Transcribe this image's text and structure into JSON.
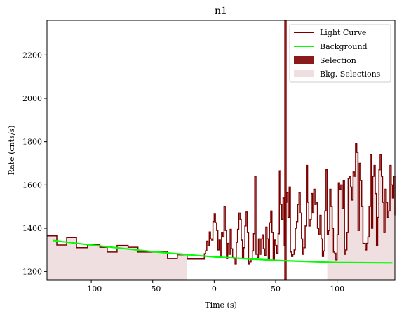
{
  "chart_data": {
    "type": "line",
    "title": "n1",
    "xlabel": "Time (s)",
    "ylabel": "Rate (cnts/s)",
    "xlim": [
      -136,
      147
    ],
    "ylim": [
      1160,
      2360
    ],
    "xticks": [
      -100,
      -50,
      0,
      50,
      100
    ],
    "xtick_labels": [
      "−100",
      "−50",
      "0",
      "50",
      "100"
    ],
    "yticks": [
      1200,
      1400,
      1600,
      1800,
      2000,
      2200
    ],
    "ytick_labels": [
      "1200",
      "1400",
      "1600",
      "1800",
      "2000",
      "2200"
    ],
    "grid": false,
    "legend_position": "top-right",
    "colors": {
      "light_curve": "#7a0000",
      "background": "#00ff00",
      "selection": "#8b1a1a",
      "bkg_selection": "#efdfe0"
    },
    "series": [
      {
        "name": "Light Curve",
        "style": "step",
        "points": [
          [
            -136,
            1365
          ],
          [
            -128,
            1322
          ],
          [
            -120,
            1357
          ],
          [
            -112,
            1310
          ],
          [
            -103,
            1325
          ],
          [
            -93,
            1312
          ],
          [
            -87,
            1290
          ],
          [
            -79,
            1320
          ],
          [
            -70,
            1312
          ],
          [
            -62,
            1290
          ],
          [
            -46,
            1293
          ],
          [
            -38,
            1260
          ],
          [
            -30,
            1278
          ],
          [
            -22,
            1258
          ],
          [
            -8,
            1283
          ],
          [
            -7,
            1296
          ],
          [
            -6,
            1340
          ],
          [
            -5,
            1318
          ],
          [
            -4,
            1383
          ],
          [
            -3,
            1350
          ],
          [
            -2,
            1345
          ],
          [
            -1,
            1430
          ],
          [
            0,
            1465
          ],
          [
            1,
            1425
          ],
          [
            2,
            1390
          ],
          [
            3,
            1300
          ],
          [
            4,
            1345
          ],
          [
            5,
            1270
          ],
          [
            6,
            1380
          ],
          [
            7,
            1360
          ],
          [
            8,
            1500
          ],
          [
            9,
            1390
          ],
          [
            10,
            1260
          ],
          [
            11,
            1330
          ],
          [
            12,
            1280
          ],
          [
            13,
            1395
          ],
          [
            14,
            1305
          ],
          [
            15,
            1265
          ],
          [
            16,
            1260
          ],
          [
            17,
            1235
          ],
          [
            18,
            1335
          ],
          [
            19,
            1395
          ],
          [
            20,
            1470
          ],
          [
            21,
            1440
          ],
          [
            22,
            1345
          ],
          [
            23,
            1260
          ],
          [
            24,
            1310
          ],
          [
            25,
            1410
          ],
          [
            26,
            1475
          ],
          [
            27,
            1380
          ],
          [
            28,
            1235
          ],
          [
            29,
            1245
          ],
          [
            30,
            1260
          ],
          [
            31,
            1295
          ],
          [
            32,
            1375
          ],
          [
            33,
            1640
          ],
          [
            34,
            1280
          ],
          [
            35,
            1265
          ],
          [
            36,
            1350
          ],
          [
            37,
            1280
          ],
          [
            38,
            1350
          ],
          [
            39,
            1370
          ],
          [
            40,
            1305
          ],
          [
            41,
            1275
          ],
          [
            42,
            1405
          ],
          [
            43,
            1350
          ],
          [
            44,
            1250
          ],
          [
            45,
            1425
          ],
          [
            46,
            1480
          ],
          [
            47,
            1380
          ],
          [
            48,
            1255
          ],
          [
            49,
            1345
          ],
          [
            50,
            1320
          ],
          [
            51,
            1285
          ],
          [
            52,
            1375
          ],
          [
            53,
            1665
          ],
          [
            54,
            1510
          ],
          [
            55,
            1440
          ],
          [
            56,
            1540
          ],
          [
            57,
            1320
          ],
          [
            58,
            1520
          ],
          [
            59,
            1565
          ],
          [
            60,
            1450
          ],
          [
            61,
            1590
          ],
          [
            62,
            1290
          ],
          [
            63,
            1270
          ],
          [
            64,
            1280
          ],
          [
            65,
            1300
          ],
          [
            66,
            1400
          ],
          [
            67,
            1430
          ],
          [
            68,
            1510
          ],
          [
            69,
            1565
          ],
          [
            70,
            1470
          ],
          [
            71,
            1350
          ],
          [
            72,
            1280
          ],
          [
            73,
            1310
          ],
          [
            74,
            1410
          ],
          [
            75,
            1690
          ],
          [
            76,
            1520
          ],
          [
            77,
            1410
          ],
          [
            78,
            1440
          ],
          [
            79,
            1560
          ],
          [
            80,
            1470
          ],
          [
            81,
            1580
          ],
          [
            82,
            1510
          ],
          [
            83,
            1520
          ],
          [
            84,
            1400
          ],
          [
            85,
            1370
          ],
          [
            86,
            1460
          ],
          [
            87,
            1350
          ],
          [
            88,
            1270
          ],
          [
            89,
            1295
          ],
          [
            90,
            1480
          ],
          [
            91,
            1670
          ],
          [
            92,
            1370
          ],
          [
            93,
            1390
          ],
          [
            94,
            1580
          ],
          [
            95,
            1500
          ],
          [
            96,
            1400
          ],
          [
            97,
            1290
          ],
          [
            98,
            1285
          ],
          [
            99,
            1255
          ],
          [
            100,
            1370
          ],
          [
            101,
            1610
          ],
          [
            102,
            1580
          ],
          [
            103,
            1600
          ],
          [
            104,
            1490
          ],
          [
            105,
            1620
          ],
          [
            106,
            1280
          ],
          [
            107,
            1300
          ],
          [
            108,
            1380
          ],
          [
            109,
            1630
          ],
          [
            110,
            1640
          ],
          [
            111,
            1590
          ],
          [
            112,
            1530
          ],
          [
            113,
            1660
          ],
          [
            114,
            1640
          ],
          [
            115,
            1790
          ],
          [
            116,
            1750
          ],
          [
            117,
            1390
          ],
          [
            118,
            1700
          ],
          [
            119,
            1620
          ],
          [
            120,
            1500
          ],
          [
            121,
            1330
          ],
          [
            122,
            1330
          ],
          [
            123,
            1300
          ],
          [
            124,
            1330
          ],
          [
            125,
            1360
          ],
          [
            126,
            1500
          ],
          [
            127,
            1740
          ],
          [
            128,
            1400
          ],
          [
            129,
            1640
          ],
          [
            130,
            1690
          ],
          [
            131,
            1560
          ],
          [
            132,
            1320
          ],
          [
            133,
            1450
          ],
          [
            134,
            1670
          ],
          [
            135,
            1740
          ],
          [
            136,
            1640
          ],
          [
            137,
            1520
          ],
          [
            138,
            1380
          ],
          [
            139,
            1580
          ],
          [
            140,
            1520
          ],
          [
            141,
            1450
          ],
          [
            142,
            1480
          ],
          [
            143,
            1690
          ],
          [
            144,
            1600
          ],
          [
            145,
            1540
          ],
          [
            146,
            1640
          ],
          [
            147,
            1460
          ]
        ]
      },
      {
        "name": "Background",
        "style": "line",
        "points": [
          [
            -131,
            1343
          ],
          [
            -100,
            1322
          ],
          [
            -50,
            1292
          ],
          [
            0,
            1268
          ],
          [
            50,
            1252
          ],
          [
            100,
            1242
          ],
          [
            145,
            1240
          ]
        ]
      },
      {
        "name": "Selection",
        "style": "band",
        "range": [
          57,
          59
        ]
      },
      {
        "name": "Bkg. Selections",
        "style": "band",
        "ranges": [
          [
            -136,
            -22
          ],
          [
            92,
            147
          ]
        ]
      }
    ]
  }
}
